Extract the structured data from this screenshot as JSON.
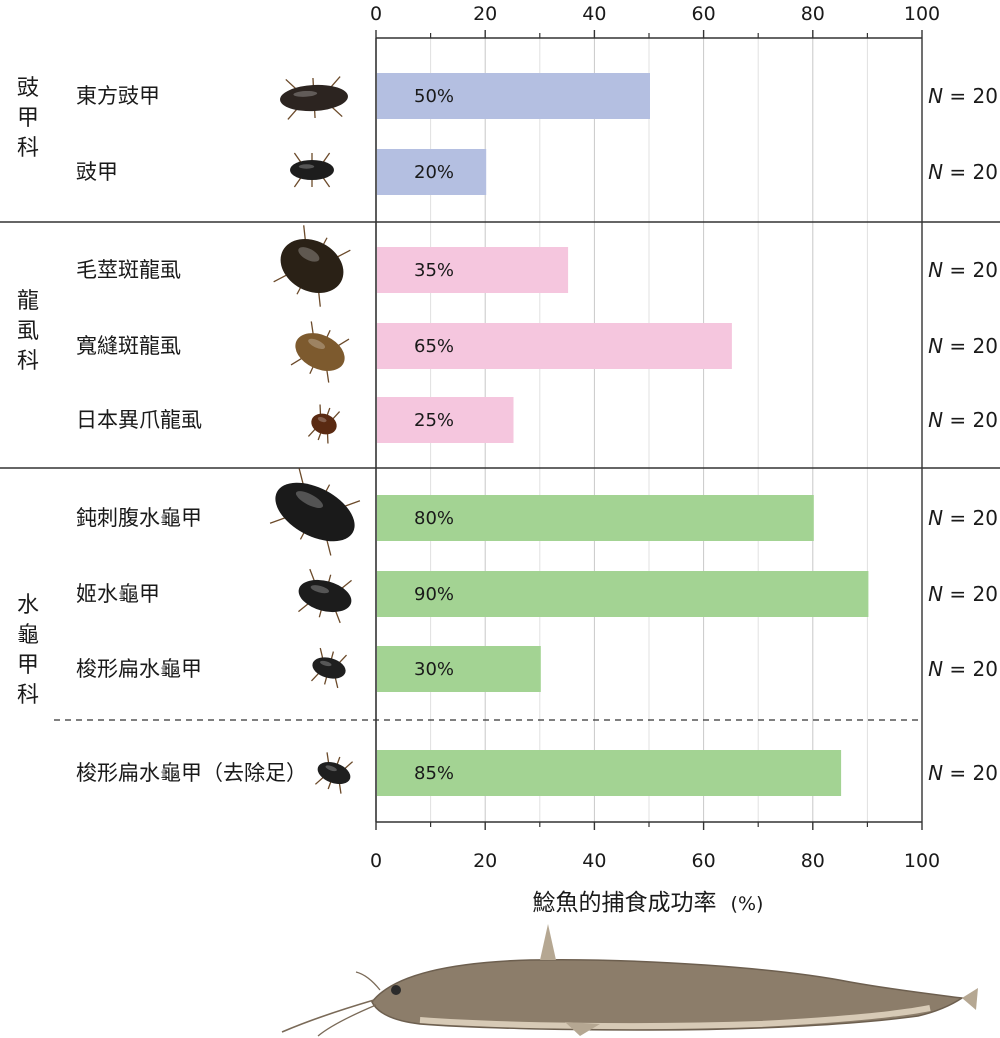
{
  "chart_data": {
    "type": "bar",
    "orientation": "horizontal",
    "xlabel": "鯰魚的捕食成功率",
    "xlabel_unit": "(%)",
    "xlim": [
      0,
      100
    ],
    "xticks": [
      "0",
      "20",
      "40",
      "60",
      "80",
      "100"
    ],
    "grid": true,
    "groups": [
      {
        "family": "豉甲科",
        "color": "#b4bfe1",
        "items": [
          {
            "label": "東方豉甲",
            "value": 50,
            "value_label": "50%",
            "n_italic": "N",
            "n_rest": " = 20"
          },
          {
            "label": "豉甲",
            "value": 20,
            "value_label": "20%",
            "n_italic": "N",
            "n_rest": " = 20"
          }
        ]
      },
      {
        "family": "龍虱科",
        "color": "#f5c6de",
        "items": [
          {
            "label": "毛莖斑龍虱",
            "value": 35,
            "value_label": "35%",
            "n_italic": "N",
            "n_rest": " = 20"
          },
          {
            "label": "寬縫斑龍虱",
            "value": 65,
            "value_label": "65%",
            "n_italic": "N",
            "n_rest": " = 20"
          },
          {
            "label": "日本異爪龍虱",
            "value": 25,
            "value_label": "25%",
            "n_italic": "N",
            "n_rest": " = 20"
          }
        ]
      },
      {
        "family": "水龜甲科",
        "color": "#a3d393",
        "items": [
          {
            "label": "鈍刺腹水龜甲",
            "value": 80,
            "value_label": "80%",
            "n_italic": "N",
            "n_rest": " = 20"
          },
          {
            "label": "姬水龜甲",
            "value": 90,
            "value_label": "90%",
            "n_italic": "N",
            "n_rest": " = 20"
          },
          {
            "label": "梭形扁水龜甲",
            "value": 30,
            "value_label": "30%",
            "n_italic": "N",
            "n_rest": " = 20"
          },
          {
            "label": "梭形扁水龜甲（去除足）",
            "value": 85,
            "value_label": "85%",
            "n_italic": "N",
            "n_rest": " = 20"
          }
        ]
      }
    ]
  },
  "colors": {
    "axis": "#333333",
    "grid": "#c8c8c8",
    "gyrinidae_bar": "#b4bfe1",
    "dytiscidae_bar": "#f5c6de",
    "hydrophilidae_bar": "#a3d393"
  },
  "icons": {
    "beetles": "beetle-icon",
    "catfish": "catfish-icon"
  }
}
